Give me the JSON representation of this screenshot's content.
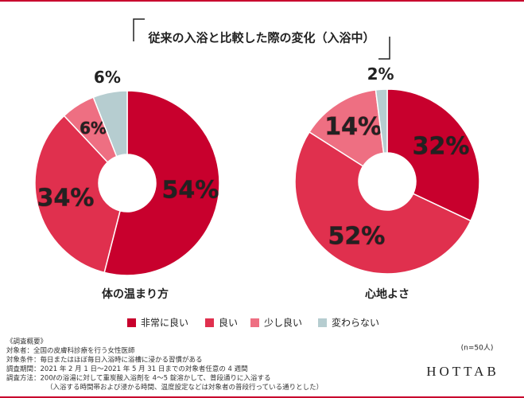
{
  "title": "従来の入浴と比較した際の変化（入浴中）",
  "chart_data": [
    {
      "type": "pie",
      "title": "体の温まり方",
      "categories": [
        "非常に良い",
        "良い",
        "少し良い",
        "変わらない"
      ],
      "values": [
        54,
        34,
        6,
        6
      ],
      "value_labels": [
        "54%",
        "34%",
        "6%",
        "6%"
      ],
      "colors": [
        "#c8002d",
        "#e0304e",
        "#ee6f82",
        "#b6cdd0"
      ]
    },
    {
      "type": "pie",
      "title": "心地よさ",
      "categories": [
        "非常に良い",
        "良い",
        "少し良い",
        "変わらない"
      ],
      "values": [
        32,
        52,
        14,
        2
      ],
      "value_labels": [
        "32%",
        "52%",
        "14%",
        "2%"
      ],
      "colors": [
        "#c8002d",
        "#e0304e",
        "#ee6f82",
        "#b6cdd0"
      ]
    }
  ],
  "notes": [
    "《調査概要》",
    "対象者：全国の皮膚科診療を行う女性医師",
    "対象条件：毎日またはほぼ毎日入浴時に浴槽に浸かる習慣がある",
    "調査期間：2021 年 2 月 1 日〜2021 年 5 月 31 日までの対象者任意の 4 週間",
    "調査方法：200ℓの浴湯に対して重炭酸入浴剤を 4〜5 錠溶かして、普段通りに入浴する",
    "（入浴する時間帯および浸かる時間、温度設定などは対象者の普段行っている通りとした）"
  ],
  "sample": "(n=50人)",
  "brand": "HOTTAB"
}
